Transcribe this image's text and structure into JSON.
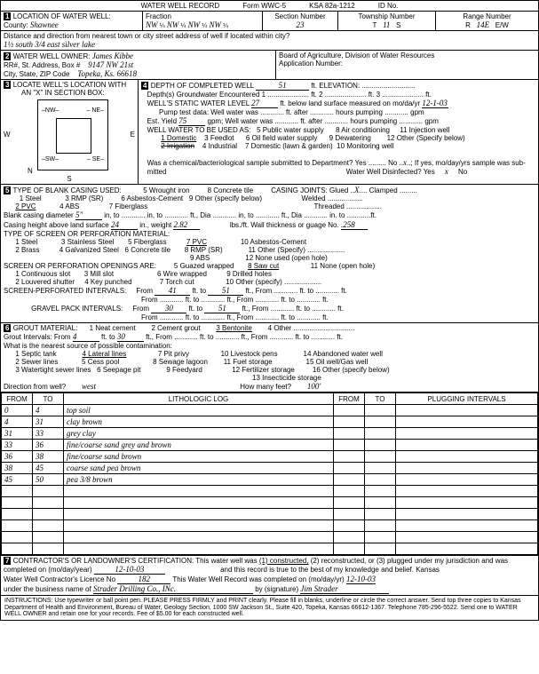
{
  "header": {
    "title": "WATER WELL RECORD",
    "form": "Form WWC-5",
    "ksa": "KSA 82a-1212",
    "id": "ID No."
  },
  "sec1": {
    "label": "LOCATION OF WATER WELL:",
    "county_lbl": "County:",
    "county": "Shawnee",
    "fraction": "Fraction",
    "f1": "NW",
    "f2": "NW",
    "f3": "NW",
    "f4": "NW",
    "q": "¼",
    "section_lbl": "Section Number",
    "section": "23",
    "township_lbl": "Township Number",
    "township": "11",
    "t": "T",
    "s": "S",
    "range_lbl": "Range Number",
    "range": "14E",
    "r": "R",
    "ew": "E/W"
  },
  "dist": {
    "label": "Distance and direction from nearest town or city street address of well if located within city?",
    "val": "1½ south 3/4 east silver lake"
  },
  "sec2": {
    "label": "WATER WELL OWNER:",
    "name": "James Kibbe",
    "addr_lbl": "RR#, St. Address, Box #",
    "addr": "9147 NW 21st",
    "city_lbl": "City, State, ZIP Code",
    "city": "Topeka, Ks. 66618",
    "board": "Board of Agriculture, Division of Water Resources",
    "app": "Application Number:"
  },
  "sec3": {
    "label": "LOCATE WELL'S LOCATION WITH",
    "sub": "AN \"X\" IN SECTION BOX:",
    "n": "N",
    "s": "S",
    "e": "E",
    "w": "W",
    "nw": "–NW–",
    "ne": "– NE–",
    "sw": "–SW–",
    "se": "– SE–"
  },
  "sec4": {
    "label": "DEPTH OF COMPLETED WELL",
    "depth": "51",
    "ft": "ft.",
    "elev": "ELEVATION:",
    "d1": "Depth(s) Groundwater Encountered",
    "d1a": "1",
    "d1b": "ft. 2",
    "d1c": "ft. 3",
    "d1d": "ft.",
    "static": "WELL'S STATIC WATER LEVEL",
    "static_v": "27",
    "static_t": "ft. below land surface measured on mo/da/yr",
    "static_d": "12-1-03",
    "pump": "Pump test data:  Well water was",
    "pump2": "ft. after",
    "pump3": "hours pumping",
    "pump4": "gpm",
    "est": "Est. Yield",
    "est_v": "75",
    "est_u": "gpm;  Well water was",
    "use": "WELL WATER TO BE USED AS:",
    "u1": "1 Domestic",
    "u2": "3 Feedlot",
    "u3": "5 Public water supply",
    "u4": "8 Air conditioning",
    "u5": "11 Injection well",
    "u6": "2 Irrigation",
    "u7": "4 Industrial",
    "u8": "6 Oil field water supply",
    "u9": "9 Dewatering",
    "u10": "12 Other (Specify below)",
    "u11": "7 Domestic (lawn & garden)",
    "u12": "10 Monitoring well",
    "chem": "Was a chemical/bacteriological sample submitted to Department? Yes",
    "no": "No",
    "x": "x",
    "chem2": "; If yes, mo/day/yrs sample was sub-",
    "mitted": "mitted",
    "disinfect": "Water Well Disinfected?  Yes",
    "dno": "No"
  },
  "sec5": {
    "label": "TYPE OF BLANK CASING USED:",
    "c1": "1 Steel",
    "c2": "3 RMP (SR)",
    "c3": "5 Wrought iron",
    "c4": "8 Concrete tile",
    "c5": "CASING JOINTS: Glued",
    "c5x": "X",
    "c5b": "Clamped",
    "c6": "2 PVC",
    "c7": "4 ABS",
    "c8": "6 Asbestos-Cement",
    "c9": "9 Other (specify below)",
    "c10": "Welded",
    "c11": "Threaded",
    "c12": "7 Fiberglass",
    "dia": "Blank casing diameter",
    "dia_v": "5\"",
    "dia_u": "in, to",
    "dia2": "in, to",
    "dia3": "ft., Dia",
    "dia4": "in, to",
    "dia5": "ft., Dia",
    "dia6": "in. to",
    "dia7": "ft.",
    "height": "Casing height above land surface",
    "height_v": "24",
    "height_u": "in., weight",
    "weight_v": "2.82",
    "weight_u": "lbs./ft. Wall thickness or guage No.",
    "gauge": ".258",
    "screen": "TYPE OF SCREEN OR PERFORATION MATERIAL:",
    "s1": "1 Steel",
    "s2": "3 Stainless Steel",
    "s3": "5 Fiberglass",
    "s4": "7 PVC",
    "s5": "10 Asbestos-Cement",
    "s6": "2 Brass",
    "s7": "4 Galvanized Steel",
    "s8": "6 Concrete tile",
    "s9": "8 RMP (SR)",
    "s10": "11 Other (Specify)",
    "s11": "9 ABS",
    "s12": "12 None used (open hole)",
    "open": "SCREEN OR PERFORATION OPENINGS ARE:",
    "o1": "1 Continuous slot",
    "o2": "3 Mill slot",
    "o3": "5 Guazed wrapped",
    "o4": "8 Saw cut",
    "o5": "11 None (open hole)",
    "o6": "2 Louvered shutter",
    "o7": "4 Key punched",
    "o8": "6 Wire wrapped",
    "o9": "9 Drilled holes",
    "o10": "7 Torch cut",
    "o11": "10 Other (specify)",
    "spi": "SCREEN-PERFORATED INTERVALS:",
    "from": "From",
    "to": "ft. to",
    "ft": "ft., From",
    "ft2": "ft. to",
    "ft3": "ft.",
    "spi_f": "41",
    "spi_t": "51",
    "gpi": "GRAVEL PACK INTERVALS:",
    "gpi_f": "30",
    "gpi_t": "51"
  },
  "sec6": {
    "label": "GROUT MATERIAL:",
    "g1": "1 Neat cement",
    "g2": "2 Cement grout",
    "g3": "3 Bentonite",
    "g4": "4 Other",
    "gi": "Grout Intervals:  From",
    "gi_f": "4",
    "gi_m": "ft. to",
    "gi_t": "30",
    "gi_e": "ft., From",
    "gi_e2": "ft. to",
    "gi_e3": "ft., From",
    "gi_e4": "ft. to",
    "gi_e5": "ft.",
    "contam": "What is the nearest source of possible contamination:",
    "p1": "1 Septic tank",
    "p2": "4 Lateral lines",
    "p3": "7 Pit privy",
    "p4": "10 Livestock pens",
    "p5": "14 Abandoned water well",
    "p6": "2 Sewer lines",
    "p7": "5 Cess pool",
    "p8": "8 Sewage lagoon",
    "p9": "11 Fuel storage",
    "p10": "15 Oil well/Gas well",
    "p11": "3 Watertight sewer lines",
    "p12": "6 Seepage pit",
    "p13": "9 Feedyard",
    "p14": "12 Fertilizer storage",
    "p15": "16 Other (specify below)",
    "p16": "13 Insecticide storage",
    "dir": "Direction from well?",
    "dir_v": "west",
    "feet": "How many feet?",
    "feet_v": "100'"
  },
  "log": {
    "h1": "FROM",
    "h2": "TO",
    "h3": "LITHOLOGIC LOG",
    "h4": "FROM",
    "h5": "TO",
    "h6": "PLUGGING INTERVALS",
    "rows": [
      {
        "f": "0",
        "t": "4",
        "d": "top soil"
      },
      {
        "f": "4",
        "t": "31",
        "d": "clay brown"
      },
      {
        "f": "31",
        "t": "33",
        "d": "grey clay"
      },
      {
        "f": "33",
        "t": "36",
        "d": "fine/coarse sand grey and brown"
      },
      {
        "f": "36",
        "t": "38",
        "d": "fine/coarse sand brown"
      },
      {
        "f": "38",
        "t": "45",
        "d": "coarse sand pea brown"
      },
      {
        "f": "45",
        "t": "50",
        "d": "pea 3/8 brown"
      },
      {
        "f": "",
        "t": "",
        "d": ""
      },
      {
        "f": "",
        "t": "",
        "d": ""
      },
      {
        "f": "",
        "t": "",
        "d": ""
      },
      {
        "f": "",
        "t": "",
        "d": ""
      },
      {
        "f": "",
        "t": "",
        "d": ""
      },
      {
        "f": "",
        "t": "",
        "d": ""
      }
    ]
  },
  "sec7": {
    "label": "CONTRACTOR'S OR LANDOWNER'S CERTIFICATION: This water well was",
    "c1": "(1) constructed,",
    "c2": "(2) reconstructed, or (3) plugged under my jurisdiction and was",
    "comp": "completed on (mo/day/year)",
    "comp_v": "12-10-03",
    "comp2": "and this record is true to the best of my knowledge and belief. Kansas",
    "lic": "Water Well Contractor's Licence No",
    "lic_v": "182",
    "lic2": "This Water Well Record was completed on (mo/day/yr)",
    "lic_d": "12-10-03",
    "bus": "under the business name of",
    "bus_v": "Strader Drilling Co., INc.",
    "sig": "by (signature)",
    "sig_v": "Jim Strader"
  },
  "inst": "INSTRUCTIONS: Use typewriter or ball point pen. PLEASE PRESS FIRMLY and PRINT clearly. Please fill in blanks, underline or circle the correct answer. Send top three copies to Kansas Department of Health and Environment, Bureau of Water, Geology Section, 1000 SW Jackson St., Suite 420, Topeka, Kansas 66612-1367. Telephone 785-296-5522. Send one to WATER WELL OWNER and retain one for your records. Fee of $5.00 for each constructed well."
}
